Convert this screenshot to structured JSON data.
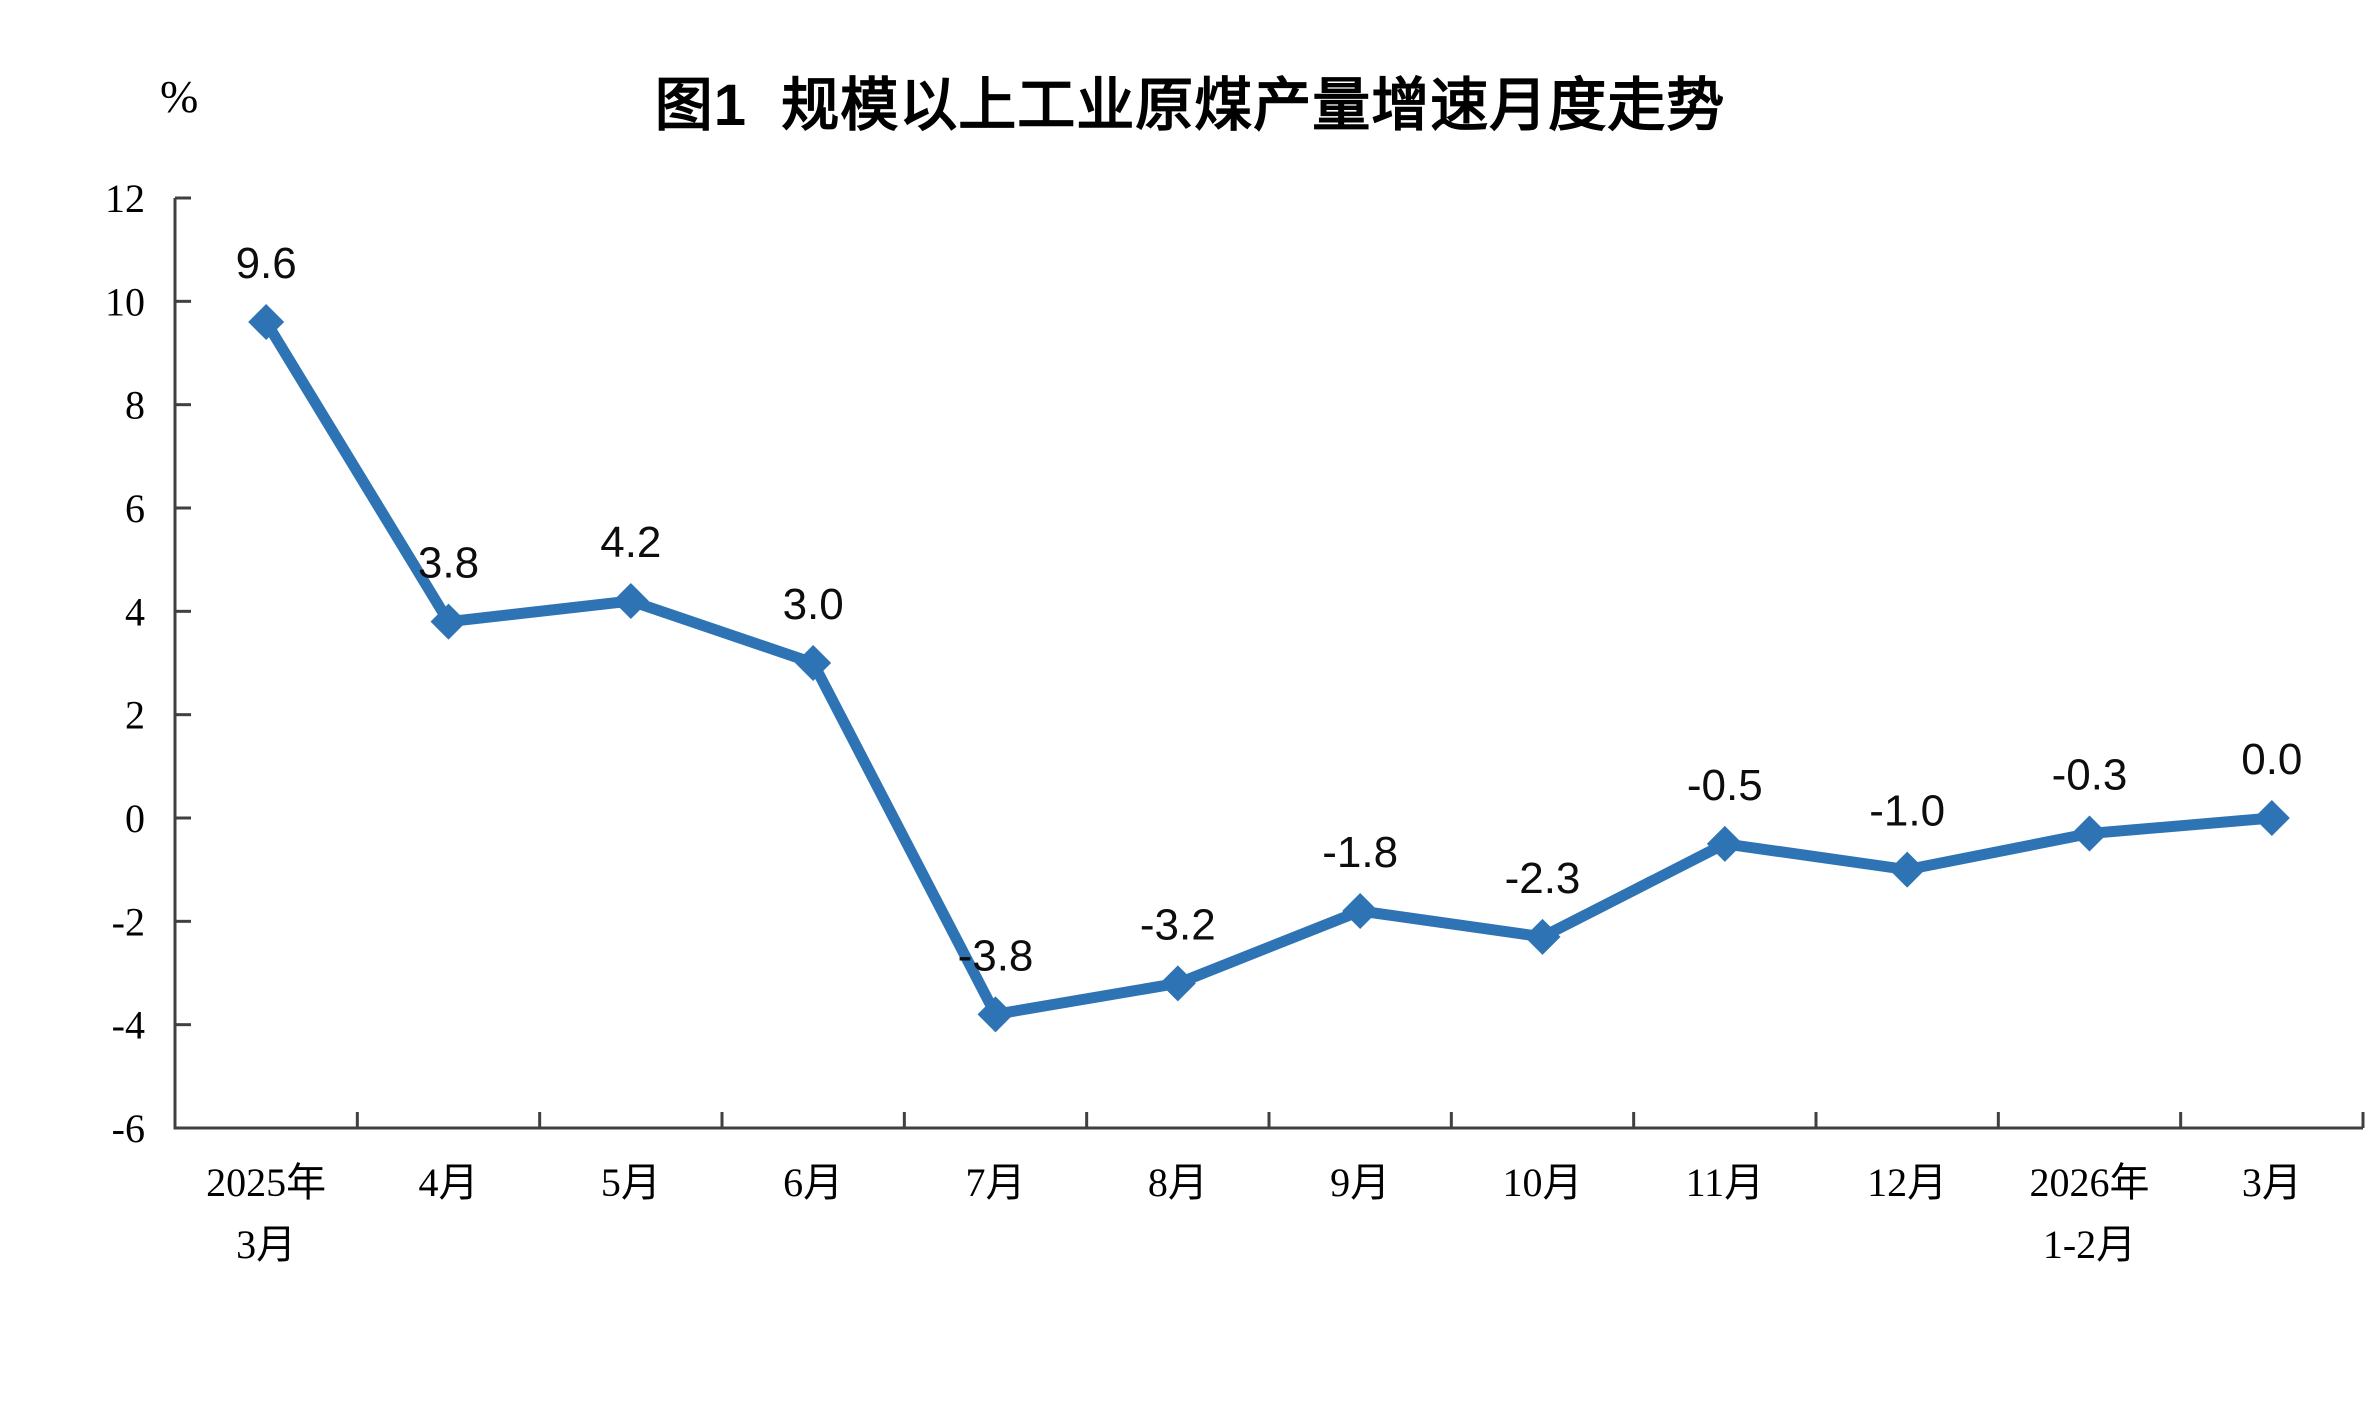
{
  "page": {
    "background": "#ffffff"
  },
  "chart_data": {
    "type": "line",
    "title": "图1  规模以上工业原煤产量增速月度走势",
    "unit_label": "%",
    "categories": [
      "2025年\n3月",
      "4月",
      "5月",
      "6月",
      "7月",
      "8月",
      "9月",
      "10月",
      "11月",
      "12月",
      "2026年\n1-2月",
      "3月"
    ],
    "values": [
      9.6,
      3.8,
      4.2,
      3.0,
      -3.8,
      -3.2,
      -1.8,
      -2.3,
      -0.5,
      -1.0,
      -0.3,
      0.0
    ],
    "data_labels": [
      "9.6",
      "3.8",
      "4.2",
      "3.0",
      "-3.8",
      "-3.2",
      "-1.8",
      "-2.3",
      "-0.5",
      "-1.0",
      "-0.3",
      "0.0"
    ],
    "yticks": [
      12,
      10,
      8,
      6,
      4,
      2,
      0,
      -2,
      -4,
      -6
    ],
    "ylim": [
      -6,
      12
    ],
    "xlabel": "",
    "ylabel": "%",
    "grid": false,
    "legend": "none",
    "marker": "diamond",
    "series_color": "#2E74B5",
    "axis_color": "#404040",
    "text_color": "#000000"
  }
}
